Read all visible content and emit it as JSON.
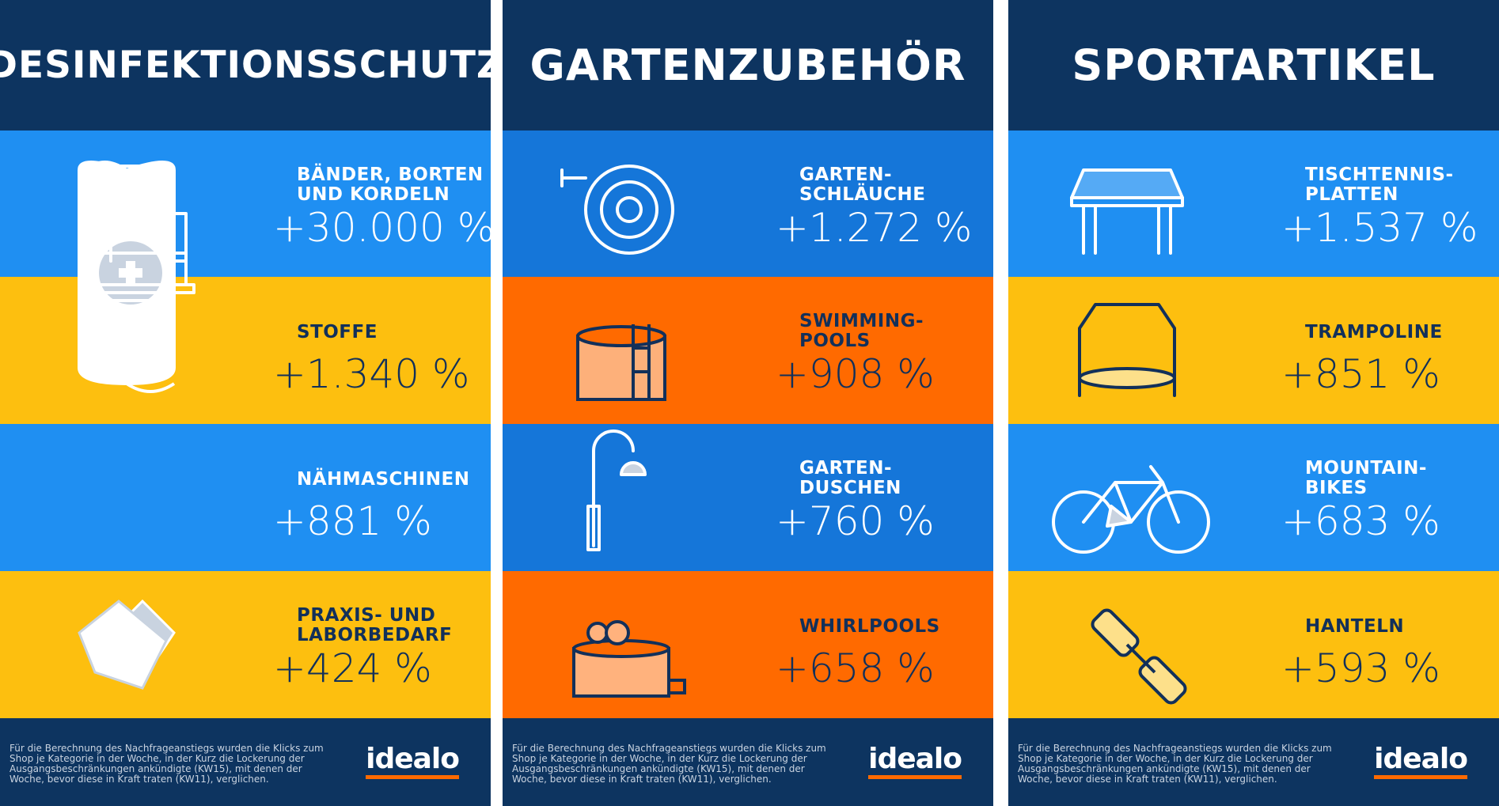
{
  "panels": [
    {
      "title": "DESINFEKTIONSSCHUTZ",
      "items": [
        {
          "label": "BÄNDER, BORTEN\nUND KORDELN",
          "value": "+30.000 %"
        },
        {
          "label": "STOFFE",
          "value": "+1.340 %"
        },
        {
          "label": "NÄHMASCHINEN",
          "value": "+881 %"
        },
        {
          "label": "PRAXIS- UND\nLABORBEDARF",
          "value": "+424 %"
        }
      ],
      "footer": "Für die Berechnung des Nachfrageanstiegs wurden die Klicks zum Shop je Kategorie in der Woche, in der Kurz die Lockerung der Ausgangsbeschränkungen ankündigte (KW15), mit denen der Woche, bevor diese in Kraft traten (KW11), verglichen.",
      "logo": "idealo"
    },
    {
      "title": "GARTENZUBEHÖR",
      "items": [
        {
          "label": "GARTEN-\nSCHLÄUCHE",
          "value": "+1.272 %"
        },
        {
          "label": "SWIMMING-\nPOOLS",
          "value": "+908 %"
        },
        {
          "label": "GARTEN-\nDUSCHEN",
          "value": "+760 %"
        },
        {
          "label": "WHIRLPOOLS",
          "value": "+658 %"
        }
      ],
      "footer": "Für die Berechnung des Nachfrageanstiegs wurden die Klicks zum Shop je Kategorie in der Woche, in der Kurz die Lockerung der Ausgangsbeschränkungen ankündigte (KW15), mit denen der Woche, bevor diese in Kraft traten (KW11), verglichen.",
      "logo": "idealo"
    },
    {
      "title": "SPORTARTIKEL",
      "items": [
        {
          "label": "TISCHTENNIS-\nPLATTEN",
          "value": "+1.537 %"
        },
        {
          "label": "TRAMPOLINE",
          "value": "+851 %"
        },
        {
          "label": "MOUNTAIN-\nBIKES",
          "value": "+683 %"
        },
        {
          "label": "HANTELN",
          "value": "+593 %"
        }
      ],
      "footer": "Für die Berechnung des Nachfrageanstiegs wurden die Klicks zum Shop je Kategorie in der Woche, in der Kurz die Lockerung der Ausgangsbeschränkungen ankündigte (KW15), mit denen der Woche, bevor diese in Kraft traten (KW11), verglichen.",
      "logo": "idealo"
    }
  ]
}
